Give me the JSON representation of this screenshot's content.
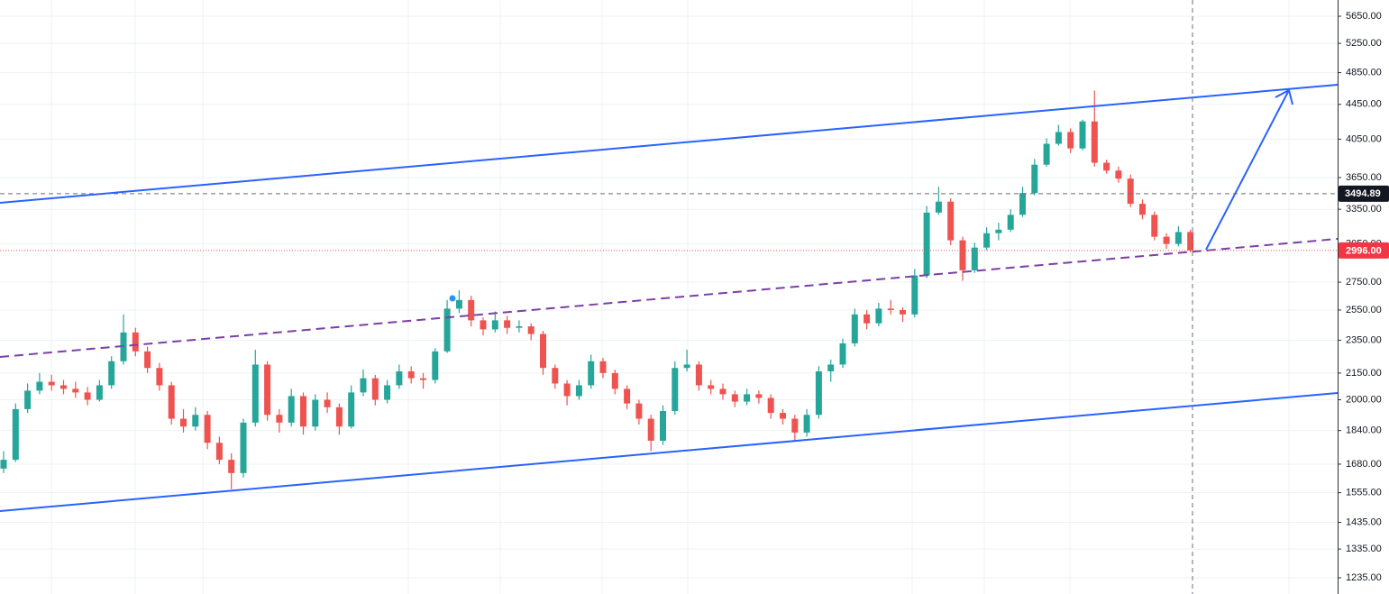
{
  "chart_data": {
    "type": "candlestick",
    "log_scale": true,
    "grid": true,
    "up_color": "#26a69a",
    "down_color": "#ef5350",
    "ylim": [
      1182,
      5904
    ],
    "yticks": [
      {
        "value": 5650,
        "label": "5650.00"
      },
      {
        "value": 5250,
        "label": "5250.00"
      },
      {
        "value": 4850,
        "label": "4850.00"
      },
      {
        "value": 4450,
        "label": "4450.00"
      },
      {
        "value": 4050,
        "label": "4050.00"
      },
      {
        "value": 3650,
        "label": "3650.00"
      },
      {
        "value": 3350,
        "label": "3350.00"
      },
      {
        "value": 3050,
        "label": "3050.00"
      },
      {
        "value": 2750,
        "label": "2750.00"
      },
      {
        "value": 2550,
        "label": "2550.00"
      },
      {
        "value": 2350,
        "label": "2350.00"
      },
      {
        "value": 2150,
        "label": "2150.00"
      },
      {
        "value": 2000,
        "label": "2000.00"
      },
      {
        "value": 1840,
        "label": "1840.00"
      },
      {
        "value": 1680,
        "label": "1680.00"
      },
      {
        "value": 1555,
        "label": "1555.00"
      },
      {
        "value": 1435,
        "label": "1435.00"
      },
      {
        "value": 1335,
        "label": "1335.00"
      },
      {
        "value": 1235,
        "label": "1235.00"
      }
    ],
    "crosshair_price": {
      "value": 3494.89,
      "label": "3494.89"
    },
    "last_price": {
      "value": 2996,
      "label": "2996.00"
    },
    "series": [
      {
        "values": [
          [
            1660,
            1740,
            1640,
            1700
          ],
          [
            1700,
            1980,
            1690,
            1950
          ],
          [
            1950,
            2090,
            1930,
            2050
          ],
          [
            2050,
            2150,
            2030,
            2100
          ],
          [
            2100,
            2140,
            2050,
            2080
          ],
          [
            2080,
            2110,
            2030,
            2060
          ],
          [
            2060,
            2100,
            2010,
            2040
          ],
          [
            2040,
            2070,
            1970,
            2000
          ],
          [
            2000,
            2110,
            1990,
            2080
          ],
          [
            2080,
            2250,
            2060,
            2220
          ],
          [
            2220,
            2520,
            2200,
            2400
          ],
          [
            2400,
            2430,
            2250,
            2280
          ],
          [
            2280,
            2310,
            2150,
            2180
          ],
          [
            2180,
            2210,
            2050,
            2080
          ],
          [
            2080,
            2100,
            1870,
            1900
          ],
          [
            1900,
            1950,
            1830,
            1860
          ],
          [
            1860,
            1960,
            1840,
            1920
          ],
          [
            1920,
            1940,
            1750,
            1780
          ],
          [
            1780,
            1810,
            1680,
            1700
          ],
          [
            1700,
            1730,
            1570,
            1640
          ],
          [
            1640,
            1900,
            1620,
            1880
          ],
          [
            1880,
            2290,
            1860,
            2200
          ],
          [
            2200,
            2220,
            1890,
            1920
          ],
          [
            1920,
            1950,
            1830,
            1880
          ],
          [
            1880,
            2060,
            1860,
            2020
          ],
          [
            2020,
            2040,
            1820,
            1860
          ],
          [
            1860,
            2030,
            1840,
            2000
          ],
          [
            2000,
            2040,
            1930,
            1960
          ],
          [
            1960,
            1980,
            1820,
            1860
          ],
          [
            1860,
            2080,
            1850,
            2040
          ],
          [
            2040,
            2170,
            2020,
            2120
          ],
          [
            2120,
            2140,
            1970,
            2000
          ],
          [
            2000,
            2110,
            1980,
            2080
          ],
          [
            2080,
            2200,
            2060,
            2160
          ],
          [
            2160,
            2190,
            2090,
            2120
          ],
          [
            2120,
            2150,
            2060,
            2110
          ],
          [
            2110,
            2300,
            2090,
            2280
          ],
          [
            2280,
            2620,
            2270,
            2560
          ],
          [
            2560,
            2690,
            2530,
            2620
          ],
          [
            2620,
            2650,
            2440,
            2480
          ],
          [
            2480,
            2500,
            2380,
            2420
          ],
          [
            2420,
            2540,
            2400,
            2480
          ],
          [
            2480,
            2510,
            2390,
            2430
          ],
          [
            2430,
            2480,
            2400,
            2440
          ],
          [
            2440,
            2460,
            2350,
            2390
          ],
          [
            2390,
            2410,
            2140,
            2180
          ],
          [
            2180,
            2200,
            2060,
            2090
          ],
          [
            2090,
            2110,
            1970,
            2020
          ],
          [
            2020,
            2110,
            2000,
            2080
          ],
          [
            2080,
            2260,
            2060,
            2220
          ],
          [
            2220,
            2240,
            2120,
            2150
          ],
          [
            2150,
            2170,
            2030,
            2060
          ],
          [
            2060,
            2080,
            1950,
            1980
          ],
          [
            1980,
            2000,
            1870,
            1900
          ],
          [
            1900,
            1920,
            1740,
            1790
          ],
          [
            1790,
            1970,
            1770,
            1940
          ],
          [
            1940,
            2220,
            1920,
            2180
          ],
          [
            2180,
            2290,
            2160,
            2200
          ],
          [
            2200,
            2220,
            2050,
            2080
          ],
          [
            2080,
            2110,
            2030,
            2060
          ],
          [
            2060,
            2090,
            2000,
            2030
          ],
          [
            2030,
            2050,
            1960,
            1990
          ],
          [
            1990,
            2060,
            1970,
            2030
          ],
          [
            2030,
            2050,
            1980,
            2010
          ],
          [
            2010,
            2030,
            1900,
            1930
          ],
          [
            1930,
            1950,
            1870,
            1900
          ],
          [
            1900,
            1920,
            1790,
            1830
          ],
          [
            1830,
            1950,
            1810,
            1920
          ],
          [
            1920,
            2190,
            1900,
            2160
          ],
          [
            2160,
            2230,
            2100,
            2200
          ],
          [
            2200,
            2360,
            2180,
            2330
          ],
          [
            2330,
            2560,
            2310,
            2520
          ],
          [
            2520,
            2550,
            2420,
            2460
          ],
          [
            2460,
            2600,
            2440,
            2560
          ],
          [
            2560,
            2620,
            2520,
            2550
          ],
          [
            2550,
            2570,
            2470,
            2520
          ],
          [
            2520,
            2850,
            2500,
            2800
          ],
          [
            2800,
            3380,
            2780,
            3320
          ],
          [
            3320,
            3560,
            3300,
            3420
          ],
          [
            3420,
            3450,
            3040,
            3080
          ],
          [
            3080,
            3110,
            2760,
            2840
          ],
          [
            2840,
            3060,
            2820,
            3020
          ],
          [
            3020,
            3190,
            3000,
            3140
          ],
          [
            3140,
            3230,
            3080,
            3170
          ],
          [
            3170,
            3350,
            3150,
            3300
          ],
          [
            3300,
            3560,
            3280,
            3500
          ],
          [
            3500,
            3840,
            3480,
            3780
          ],
          [
            3780,
            4060,
            3760,
            4000
          ],
          [
            4000,
            4210,
            3980,
            4130
          ],
          [
            4130,
            4170,
            3900,
            3950
          ],
          [
            3950,
            4270,
            3930,
            4250
          ],
          [
            4250,
            4620,
            3760,
            3800
          ],
          [
            3800,
            3830,
            3690,
            3720
          ],
          [
            3720,
            3760,
            3600,
            3640
          ],
          [
            3640,
            3680,
            3370,
            3400
          ],
          [
            3400,
            3440,
            3260,
            3300
          ],
          [
            3300,
            3330,
            3080,
            3110
          ],
          [
            3110,
            3140,
            3010,
            3050
          ],
          [
            3050,
            3200,
            3030,
            3150
          ],
          [
            3150,
            3170,
            2980,
            2996
          ]
        ]
      }
    ]
  }
}
